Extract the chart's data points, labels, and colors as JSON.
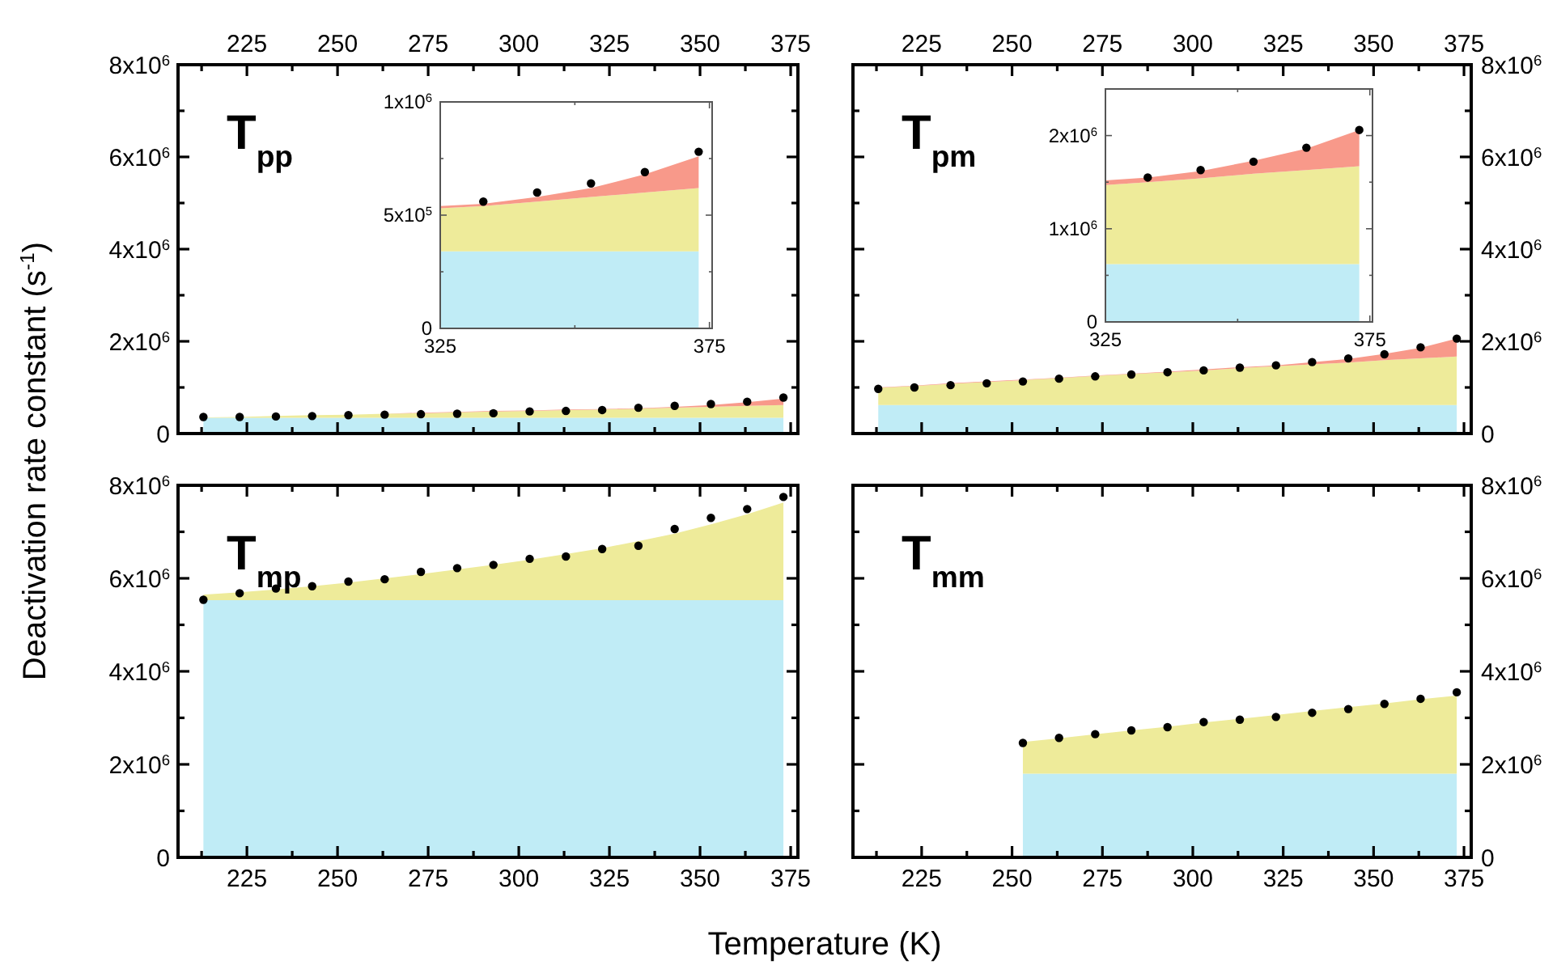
{
  "chart_data": [
    {
      "type": "area",
      "stacked": true,
      "title": "T$_{pp}$",
      "ylabel": "Deactivation rate constant (s$^{-1}$)",
      "x": [
        213,
        223,
        233,
        243,
        253,
        263,
        273,
        283,
        293,
        303,
        313,
        323,
        333,
        343,
        353,
        363,
        373
      ],
      "xlim": [
        206,
        377
      ],
      "xticks": [
        {
          "value": 212.5,
          "label": null
        },
        225,
        {
          "value": 237.5,
          "label": null
        },
        250,
        {
          "value": 262.5,
          "label": null
        },
        275,
        {
          "value": 287.5,
          "label": null
        },
        300,
        {
          "value": 312.5,
          "label": null
        },
        325,
        {
          "value": 337.5,
          "label": null
        },
        350,
        {
          "value": 362.5,
          "label": null
        },
        375
      ],
      "ylim": [
        0,
        8000000
      ],
      "yticks": [
        {
          "value": 0,
          "label": "0"
        },
        {
          "value": 1000000,
          "label": null
        },
        {
          "value": 2000000,
          "label": "2x10$^{6}$"
        },
        {
          "value": 3000000,
          "label": null
        },
        {
          "value": 4000000,
          "label": "4x10$^{6}$"
        },
        {
          "value": 5000000,
          "label": null
        },
        {
          "value": 6000000,
          "label": "6x10$^{6}$"
        },
        {
          "value": 7000000,
          "label": null
        },
        {
          "value": 8000000,
          "label": "8x10$^{6}$"
        }
      ],
      "series": [
        {
          "color": "#c0ecf6",
          "values": [
            340000,
            340000,
            340000,
            340000,
            340000,
            340000,
            340000,
            340000,
            340000,
            340000,
            340000,
            340000,
            340000,
            340000,
            340000,
            340000,
            340000
          ]
        },
        {
          "color": "#eeeb9a",
          "values": [
            10000,
            20000,
            40000,
            60000,
            70000,
            90000,
            100000,
            120000,
            140000,
            150000,
            170000,
            180000,
            200000,
            220000,
            240000,
            260000,
            280000
          ]
        },
        {
          "color": "#f8998a",
          "values": [
            0,
            0,
            0,
            0,
            0,
            0,
            10000,
            10000,
            10000,
            10000,
            10000,
            10000,
            10000,
            20000,
            40000,
            80000,
            140000
          ]
        },
        {
          "type": "scatter",
          "marker": "circle",
          "color": "#000000",
          "values": [
            360000,
            360000,
            370000,
            380000,
            400000,
            410000,
            420000,
            430000,
            440000,
            480000,
            490000,
            510000,
            560000,
            600000,
            640000,
            690000,
            780000
          ]
        }
      ]
    },
    {
      "type": "area",
      "stacked": true,
      "x": [
        325,
        333,
        343,
        353,
        363,
        373
      ],
      "xlim": [
        325,
        375.5
      ],
      "xticks": [
        325,
        {
          "value": 350,
          "label": null
        },
        375
      ],
      "ylim": [
        0,
        1000000
      ],
      "yticks": [
        {
          "value": 0,
          "label": "0"
        },
        {
          "value": 250000,
          "label": null
        },
        {
          "value": 500000,
          "label": "5x10$^{5}$"
        },
        {
          "value": 750000,
          "label": null
        },
        {
          "value": 1000000,
          "label": "1x10$^{6}$"
        }
      ],
      "series": [
        {
          "color": "#c0ecf6",
          "values": [
            340000,
            340000,
            340000,
            340000,
            340000,
            340000
          ]
        },
        {
          "color": "#eeeb9a",
          "values": [
            190000,
            200000,
            220000,
            240000,
            260000,
            280000
          ]
        },
        {
          "color": "#f8998a",
          "values": [
            10000,
            10000,
            20000,
            40000,
            80000,
            140000
          ]
        },
        {
          "type": "scatter",
          "marker": "circle",
          "color": "#000000",
          "x": [
            333,
            343,
            353,
            363,
            373
          ],
          "values": [
            560000,
            600000,
            640000,
            690000,
            780000
          ]
        }
      ]
    },
    {
      "type": "area",
      "stacked": true,
      "title": "T$_{pm}$",
      "x": [
        213,
        223,
        233,
        243,
        253,
        263,
        273,
        283,
        293,
        303,
        313,
        323,
        333,
        343,
        353,
        363,
        373
      ],
      "xlim": [
        206,
        377
      ],
      "xticks": [
        {
          "value": 212.5,
          "label": null
        },
        225,
        {
          "value": 237.5,
          "label": null
        },
        250,
        {
          "value": 262.5,
          "label": null
        },
        275,
        {
          "value": 287.5,
          "label": null
        },
        300,
        {
          "value": 312.5,
          "label": null
        },
        325,
        {
          "value": 337.5,
          "label": null
        },
        350,
        {
          "value": 362.5,
          "label": null
        },
        375
      ],
      "ylim": [
        0,
        8000000
      ],
      "yticks": [
        {
          "value": 0,
          "label": "0"
        },
        {
          "value": 1000000,
          "label": null
        },
        {
          "value": 2000000,
          "label": "2x10$^{6}$"
        },
        {
          "value": 3000000,
          "label": null
        },
        {
          "value": 4000000,
          "label": "4x10$^{6}$"
        },
        {
          "value": 5000000,
          "label": null
        },
        {
          "value": 6000000,
          "label": "6x10$^{6}$"
        },
        {
          "value": 7000000,
          "label": null
        },
        {
          "value": 8000000,
          "label": "8x10$^{6}$"
        }
      ],
      "series": [
        {
          "color": "#c0ecf6",
          "values": [
            620000,
            620000,
            620000,
            620000,
            620000,
            620000,
            620000,
            620000,
            620000,
            620000,
            620000,
            620000,
            620000,
            620000,
            620000,
            620000,
            620000
          ]
        },
        {
          "color": "#eeeb9a",
          "values": [
            370000,
            410000,
            460000,
            500000,
            540000,
            580000,
            630000,
            670000,
            710000,
            750000,
            800000,
            840000,
            880000,
            920000,
            970000,
            1010000,
            1050000
          ]
        },
        {
          "color": "#f8998a",
          "values": [
            10000,
            10000,
            10000,
            10000,
            10000,
            10000,
            10000,
            10000,
            10000,
            20000,
            20000,
            20000,
            50000,
            80000,
            140000,
            230000,
            390000
          ]
        },
        {
          "type": "scatter",
          "marker": "circle",
          "color": "#000000",
          "values": [
            970000,
            1000000,
            1050000,
            1090000,
            1130000,
            1190000,
            1240000,
            1280000,
            1330000,
            1370000,
            1430000,
            1480000,
            1550000,
            1630000,
            1720000,
            1870000,
            2060000
          ]
        }
      ]
    },
    {
      "type": "area",
      "stacked": true,
      "x": [
        325,
        333,
        343,
        353,
        363,
        373
      ],
      "xlim": [
        325,
        375.5
      ],
      "xticks": [
        325,
        {
          "value": 350,
          "label": null
        },
        375
      ],
      "ylim": [
        0,
        2500000
      ],
      "yticks": [
        {
          "value": 0,
          "label": "0"
        },
        {
          "value": 500000,
          "label": null
        },
        {
          "value": 1000000,
          "label": "1x10$^{6}$"
        },
        {
          "value": 1500000,
          "label": null
        },
        {
          "value": 2000000,
          "label": "2x10$^{6}$"
        }
      ],
      "series": [
        {
          "color": "#c0ecf6",
          "values": [
            620000,
            620000,
            620000,
            620000,
            620000,
            620000
          ]
        },
        {
          "color": "#eeeb9a",
          "values": [
            850000,
            880000,
            920000,
            970000,
            1010000,
            1050000
          ]
        },
        {
          "color": "#f8998a",
          "values": [
            50000,
            50000,
            80000,
            140000,
            230000,
            390000
          ]
        },
        {
          "type": "scatter",
          "marker": "circle",
          "color": "#000000",
          "x": [
            333,
            343,
            353,
            363,
            373
          ],
          "values": [
            1550000,
            1630000,
            1720000,
            1870000,
            2060000
          ]
        }
      ]
    },
    {
      "type": "area",
      "stacked": true,
      "title": "T$_{mp}$",
      "xlabel": "Temperature (K)",
      "x": [
        213,
        223,
        233,
        243,
        253,
        263,
        273,
        283,
        293,
        303,
        313,
        323,
        333,
        343,
        353,
        363,
        373
      ],
      "xlim": [
        206,
        377
      ],
      "xticks": [
        {
          "value": 212.5,
          "label": null
        },
        225,
        {
          "value": 237.5,
          "label": null
        },
        250,
        {
          "value": 262.5,
          "label": null
        },
        275,
        {
          "value": 287.5,
          "label": null
        },
        300,
        {
          "value": 312.5,
          "label": null
        },
        325,
        {
          "value": 337.5,
          "label": null
        },
        350,
        {
          "value": 362.5,
          "label": null
        },
        375
      ],
      "ylim": [
        0,
        8000000
      ],
      "yticks": [
        {
          "value": 0,
          "label": "0"
        },
        {
          "value": 1000000,
          "label": null
        },
        {
          "value": 2000000,
          "label": "2x10$^{6}$"
        },
        {
          "value": 3000000,
          "label": null
        },
        {
          "value": 4000000,
          "label": "4x10$^{6}$"
        },
        {
          "value": 5000000,
          "label": null
        },
        {
          "value": 6000000,
          "label": "6x10$^{6}$"
        },
        {
          "value": 7000000,
          "label": null
        },
        {
          "value": 8000000,
          "label": "8x10$^{6}$"
        }
      ],
      "series": [
        {
          "color": "#c0ecf6",
          "values": [
            5530000,
            5530000,
            5530000,
            5530000,
            5530000,
            5530000,
            5530000,
            5530000,
            5530000,
            5530000,
            5530000,
            5530000,
            5530000,
            5530000,
            5530000,
            5530000,
            5530000
          ]
        },
        {
          "color": "#eeeb9a",
          "values": [
            120000,
            170000,
            230000,
            300000,
            380000,
            470000,
            560000,
            660000,
            760000,
            870000,
            990000,
            1120000,
            1270000,
            1430000,
            1630000,
            1850000,
            2100000
          ]
        },
        {
          "type": "scatter",
          "marker": "circle",
          "color": "#000000",
          "values": [
            5540000,
            5680000,
            5780000,
            5830000,
            5930000,
            5980000,
            6140000,
            6220000,
            6290000,
            6420000,
            6470000,
            6630000,
            6700000,
            7060000,
            7300000,
            7490000,
            7750000
          ]
        }
      ]
    },
    {
      "type": "area",
      "stacked": true,
      "title": "T$_{mm}$",
      "x": [
        253,
        263,
        273,
        283,
        293,
        303,
        313,
        323,
        333,
        343,
        353,
        363,
        373
      ],
      "xlim": [
        206,
        377
      ],
      "xticks": [
        {
          "value": 212.5,
          "label": null
        },
        225,
        {
          "value": 237.5,
          "label": null
        },
        250,
        {
          "value": 262.5,
          "label": null
        },
        275,
        {
          "value": 287.5,
          "label": null
        },
        300,
        {
          "value": 312.5,
          "label": null
        },
        325,
        {
          "value": 337.5,
          "label": null
        },
        350,
        {
          "value": 362.5,
          "label": null
        },
        375
      ],
      "ylim": [
        0,
        8000000
      ],
      "yticks": [
        {
          "value": 0,
          "label": "0"
        },
        {
          "value": 1000000,
          "label": null
        },
        {
          "value": 2000000,
          "label": "2x10$^{6}$"
        },
        {
          "value": 3000000,
          "label": null
        },
        {
          "value": 4000000,
          "label": "4x10$^{6}$"
        },
        {
          "value": 5000000,
          "label": null
        },
        {
          "value": 6000000,
          "label": "6x10$^{6}$"
        },
        {
          "value": 7000000,
          "label": null
        },
        {
          "value": 8000000,
          "label": "8x10$^{6}$"
        }
      ],
      "series": [
        {
          "color": "#c0ecf6",
          "values": [
            1800000,
            1800000,
            1800000,
            1800000,
            1800000,
            1800000,
            1800000,
            1800000,
            1800000,
            1800000,
            1800000,
            1800000,
            1800000
          ]
        },
        {
          "color": "#eeeb9a",
          "values": [
            680000,
            760000,
            850000,
            930000,
            1010000,
            1100000,
            1180000,
            1260000,
            1350000,
            1430000,
            1510000,
            1600000,
            1680000
          ]
        },
        {
          "type": "scatter",
          "marker": "circle",
          "color": "#000000",
          "values": [
            2460000,
            2570000,
            2650000,
            2730000,
            2800000,
            2910000,
            2960000,
            3020000,
            3110000,
            3190000,
            3300000,
            3410000,
            3550000
          ]
        }
      ]
    }
  ]
}
